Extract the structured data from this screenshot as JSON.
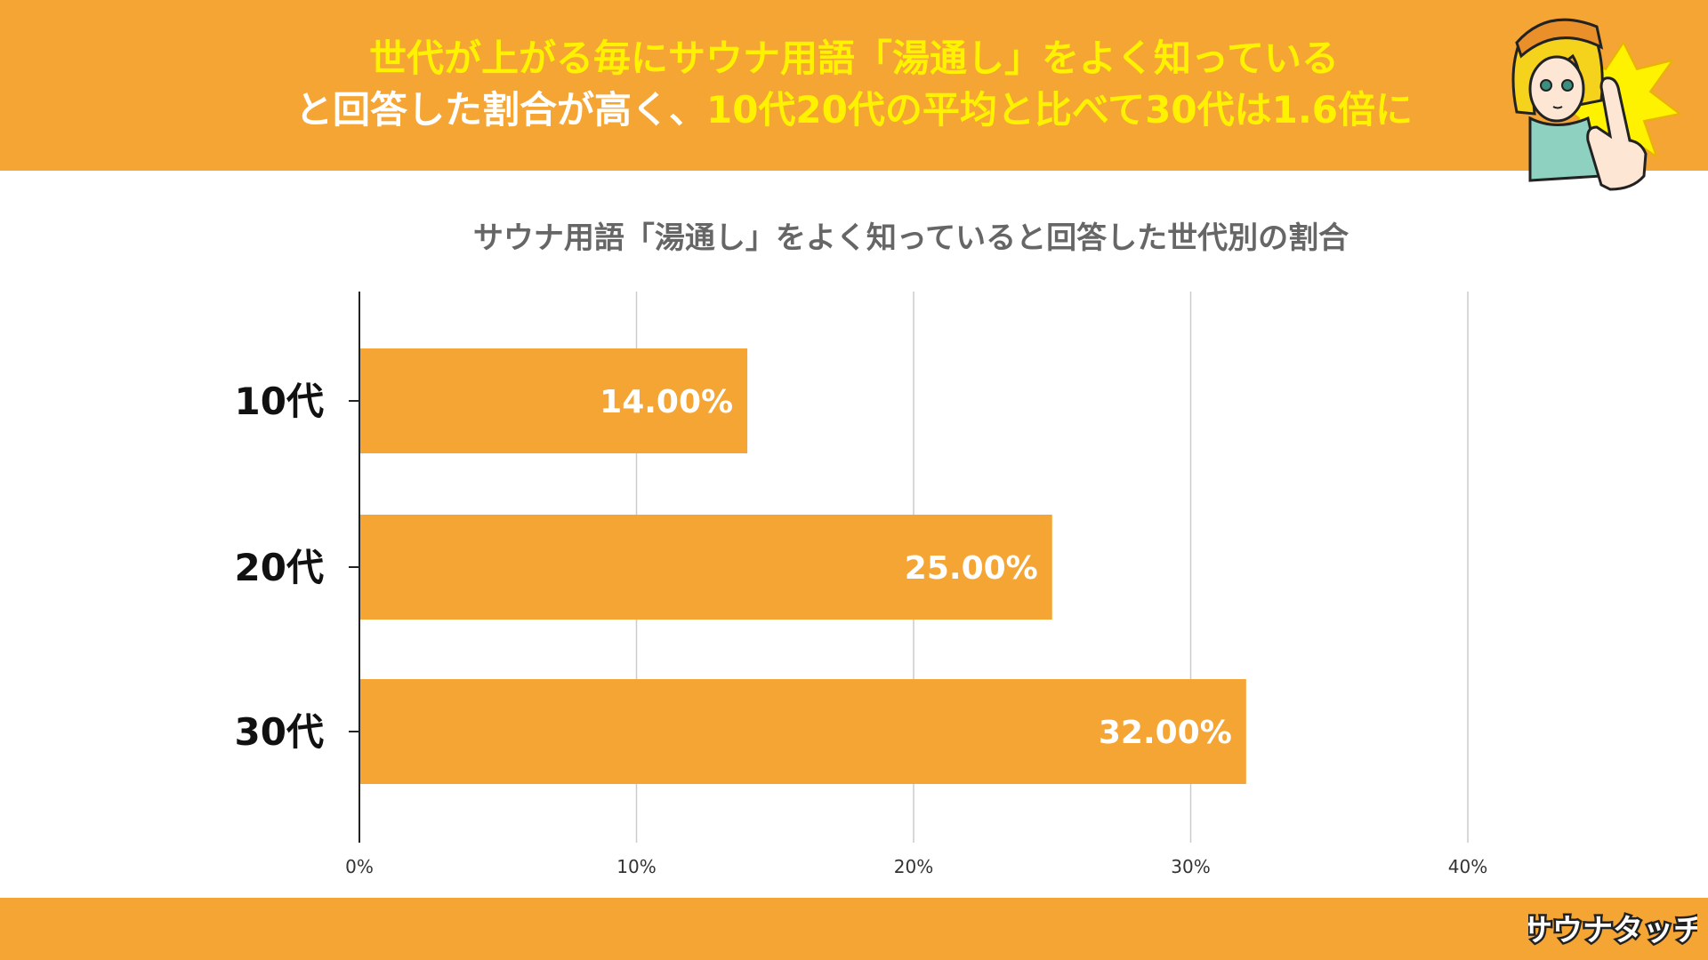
{
  "header": {
    "line1": "世代が上がる毎にサウナ用語「湯通し」をよく知っている",
    "line2_prefix": "と回答した割合が高く、",
    "line2_highlight": "10代20代の平均と比べて30代は1.6倍に"
  },
  "colors": {
    "accent": "#f4a533",
    "headline_highlight": "#fff200",
    "chart_title": "#666666",
    "gridline": "#cccccc"
  },
  "brand": {
    "logo_text": "サウナタッチ"
  },
  "mascot": {
    "icon": "pointing-character-illustration"
  },
  "chart_data": {
    "type": "bar",
    "orientation": "horizontal",
    "title": "サウナ用語「湯通し」をよく知っていると回答した世代別の割合",
    "categories": [
      "10代",
      "20代",
      "30代"
    ],
    "values": [
      14,
      25,
      32
    ],
    "value_labels": [
      "14.00%",
      "25.00%",
      "32.00%"
    ],
    "xlim": [
      0,
      40
    ],
    "x_ticks": [
      0,
      10,
      20,
      30,
      40
    ],
    "x_tick_labels": [
      "0%",
      "10%",
      "20%",
      "30%",
      "40%"
    ],
    "grid": true,
    "legend": "none",
    "bar_color": "#f4a533"
  }
}
